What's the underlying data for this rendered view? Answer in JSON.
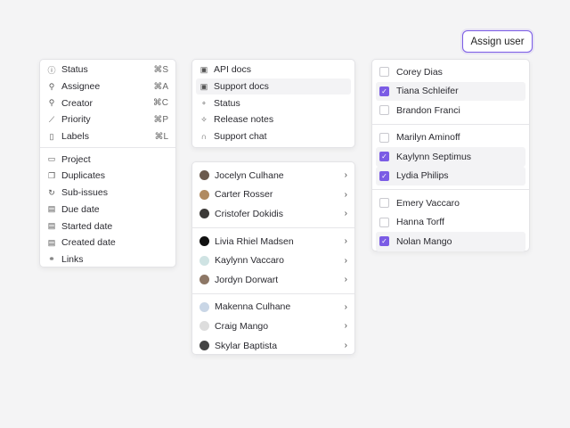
{
  "fields_menu": {
    "group1": [
      {
        "icon": "info-circle-icon",
        "label": "Status",
        "shortcut": "⌘S"
      },
      {
        "icon": "user-icon",
        "label": "Assignee",
        "shortcut": "⌘A"
      },
      {
        "icon": "user-plus-icon",
        "label": "Creator",
        "shortcut": "⌘C"
      },
      {
        "icon": "chart-icon",
        "label": "Priority",
        "shortcut": "⌘P"
      },
      {
        "icon": "bookmark-icon",
        "label": "Labels",
        "shortcut": "⌘L"
      }
    ],
    "group2": [
      {
        "icon": "folder-icon",
        "label": "Project"
      },
      {
        "icon": "copy-icon",
        "label": "Duplicates"
      },
      {
        "icon": "refresh-icon",
        "label": "Sub-issues"
      },
      {
        "icon": "calendar-icon",
        "label": "Due date"
      },
      {
        "icon": "calendar-start-icon",
        "label": "Started date"
      },
      {
        "icon": "calendar-check-icon",
        "label": "Created date"
      },
      {
        "icon": "link-icon",
        "label": "Links"
      }
    ]
  },
  "help_menu": [
    {
      "icon": "document-search-icon",
      "label": "API docs"
    },
    {
      "icon": "document-info-icon",
      "label": "Support docs",
      "highlighted": true
    },
    {
      "icon": "nodes-icon",
      "label": "Status"
    },
    {
      "icon": "sparkle-icon",
      "label": "Release notes"
    },
    {
      "icon": "headphones-icon",
      "label": "Support chat"
    }
  ],
  "people_menu": [
    [
      "Jocelyn Culhane",
      "Carter Rosser",
      "Cristofer Dokidis"
    ],
    [
      "Livia Rhiel Madsen",
      "Kaylynn Vaccaro",
      "Jordyn Dorwart"
    ],
    [
      "Makenna Culhane",
      "Craig Mango",
      "Skylar Baptista"
    ]
  ],
  "assign_button": "Assign user",
  "assign_menu": [
    [
      {
        "name": "Corey Dias",
        "checked": false
      },
      {
        "name": "Tiana Schleifer",
        "checked": true
      },
      {
        "name": "Brandon Franci",
        "checked": false
      }
    ],
    [
      {
        "name": "Marilyn Aminoff",
        "checked": false
      },
      {
        "name": "Kaylynn Septimus",
        "checked": true
      },
      {
        "name": "Lydia Philips",
        "checked": true
      }
    ],
    [
      {
        "name": "Emery Vaccaro",
        "checked": false
      },
      {
        "name": "Hanna Torff",
        "checked": false
      },
      {
        "name": "Nolan Mango",
        "checked": true
      }
    ]
  ],
  "colors": {
    "accent": "#7b5ce5",
    "background": "#f4f4f5"
  }
}
